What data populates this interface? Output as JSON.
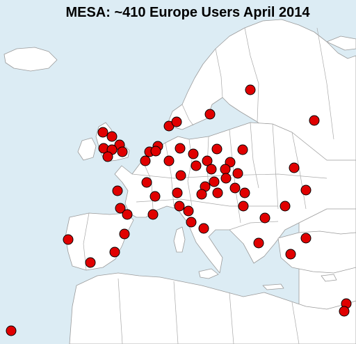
{
  "map": {
    "title": "MESA: ~410 Europe Users April 2014",
    "colors": {
      "sea": "#dcecf4",
      "land": "#ffffff",
      "border": "#a8a8a8",
      "marker": "#e00000",
      "marker_outline": "#000000"
    },
    "marker_count": 79
  }
}
